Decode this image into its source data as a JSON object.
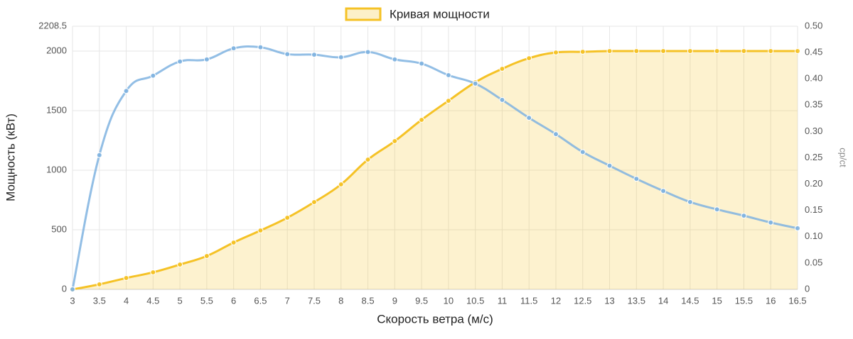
{
  "chart_data": {
    "type": "line",
    "legend_position": "top",
    "x_label": "Скорость ветра (м/с)",
    "y_label": "Мощность (кВт)",
    "y2_label": "cp/ct",
    "categories": [
      "3",
      "3.5",
      "4",
      "4.5",
      "5",
      "5.5",
      "6",
      "6.5",
      "7",
      "7.5",
      "8",
      "8.5",
      "9",
      "9.5",
      "10",
      "10.5",
      "11",
      "11.5",
      "12",
      "12.5",
      "13",
      "13.5",
      "14",
      "14.5",
      "15",
      "15.5",
      "16",
      "16.5"
    ],
    "ylim": [
      0,
      2208.5
    ],
    "yticks": [
      0,
      500,
      1000,
      1500,
      2000,
      2208.5
    ],
    "y2lim": [
      0,
      0.5
    ],
    "y2ticks": [
      0,
      {
        "value": 0.05,
        "label": "0.05"
      },
      {
        "value": 0.1,
        "label": "0.10"
      },
      {
        "value": 0.15,
        "label": "0.15"
      },
      {
        "value": 0.2,
        "label": "0.20"
      },
      {
        "value": 0.25,
        "label": "0.25"
      },
      {
        "value": 0.3,
        "label": "0.30"
      },
      {
        "value": 0.35,
        "label": "0.35"
      },
      {
        "value": 0.4,
        "label": "0.40"
      },
      {
        "value": 0.45,
        "label": "0.45"
      },
      {
        "value": 0.5,
        "label": "0.50"
      }
    ],
    "grid": true,
    "series": [
      {
        "name": "Кривая мощности",
        "color": "#f5c226",
        "fill": true,
        "values": [
          0,
          42,
          95,
          143,
          208,
          280,
          393,
          494,
          601,
          732,
          881,
          1089,
          1244,
          1423,
          1583,
          1738,
          1851,
          1940,
          1988,
          1994,
          2000,
          2000,
          2000,
          2000,
          2000,
          2000,
          2000,
          2000
        ]
      },
      {
        "color": "#7fb3e0",
        "axis": "y2",
        "values": [
          0,
          0.255,
          0.377,
          0.406,
          0.433,
          0.437,
          0.458,
          0.46,
          0.447,
          0.446,
          0.441,
          0.451,
          0.437,
          0.429,
          0.407,
          0.391,
          0.36,
          0.326,
          0.295,
          0.261,
          0.235,
          0.21,
          0.187,
          0.166,
          0.152,
          0.14,
          0.127,
          0.116
        ]
      }
    ]
  }
}
